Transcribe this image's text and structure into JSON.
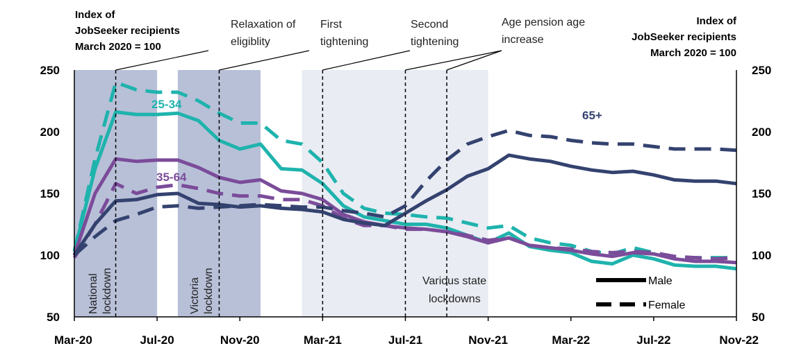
{
  "chart_data": {
    "type": "line",
    "ylabel_left": [
      "Index of",
      "JobSeeker recipients",
      "March 2020 = 100"
    ],
    "ylabel_right": [
      "Index of",
      "JobSeeker recipients",
      "March 2020 = 100"
    ],
    "ylim": [
      50,
      250
    ],
    "yticks": [
      50,
      100,
      150,
      200,
      250
    ],
    "x_start": "2020-03",
    "x_end": "2022-11",
    "x_tick_labels": [
      "Mar-20",
      "Jul-20",
      "Nov-20",
      "Mar-21",
      "Jul-21",
      "Nov-21",
      "Mar-22",
      "Jul-22",
      "Nov-22"
    ],
    "colors": {
      "25-34": "#1fb3ad",
      "35-64": "#7b4c9a",
      "65+": "#34426f",
      "shade_dark": "#b8c0d8",
      "shade_light": "#e9ecf3"
    },
    "shaded_periods": [
      {
        "start": "2020-03",
        "end": "2020-07",
        "shade": "dark",
        "label": [
          "National",
          "lockdown"
        ]
      },
      {
        "start": "2020-08",
        "end": "2020-12",
        "shade": "dark",
        "label": [
          "Victoria",
          "lockdown"
        ]
      },
      {
        "start": "2021-02",
        "end": "2021-11",
        "shade": "light",
        "label": [
          "Various state",
          "lockdowns"
        ]
      }
    ],
    "events": [
      {
        "date": "2020-05",
        "label": [
          "",
          ""
        ]
      },
      {
        "date": "2020-10",
        "label": [
          "Relaxation of",
          "eligiblity"
        ]
      },
      {
        "date": "2021-03",
        "label": [
          "First",
          "tightening"
        ]
      },
      {
        "date": "2021-07",
        "label": [
          "Second",
          "tightening"
        ]
      },
      {
        "date": "2021-09",
        "label": [
          "Age pension age",
          "increase"
        ]
      }
    ],
    "series_labels": [
      {
        "text": "25-34",
        "series": "25-34"
      },
      {
        "text": "35-64",
        "series": "35-64"
      },
      {
        "text": "65+",
        "series": "65+"
      }
    ],
    "legend": [
      {
        "label": "Male",
        "style": "solid"
      },
      {
        "label": "Female",
        "style": "dashed"
      }
    ],
    "series": [
      {
        "name": "25-34",
        "sex": "Male",
        "style": "solid",
        "values": [
          103,
          170,
          216,
          214,
          214,
          215,
          209,
          193,
          186,
          190,
          170,
          169,
          158,
          140,
          131,
          128,
          125,
          125,
          122,
          116,
          110,
          118,
          107,
          104,
          102,
          95,
          93,
          100,
          97,
          92,
          91,
          91,
          89
        ]
      },
      {
        "name": "25-34",
        "sex": "Female",
        "style": "dashed",
        "values": [
          103,
          178,
          240,
          234,
          232,
          232,
          225,
          215,
          207,
          207,
          193,
          190,
          175,
          150,
          138,
          134,
          133,
          131,
          130,
          126,
          122,
          124,
          114,
          110,
          108,
          103,
          101,
          106,
          102,
          98,
          98,
          98,
          98
        ]
      },
      {
        "name": "35-64",
        "sex": "Male",
        "style": "solid",
        "values": [
          100,
          150,
          178,
          176,
          177,
          177,
          171,
          163,
          159,
          161,
          152,
          150,
          145,
          133,
          127,
          124,
          122,
          121,
          119,
          115,
          110,
          114,
          108,
          106,
          104,
          101,
          99,
          102,
          101,
          97,
          95,
          95,
          94
        ]
      },
      {
        "name": "35-64",
        "sex": "Female",
        "style": "dashed",
        "values": [
          98,
          125,
          158,
          150,
          155,
          157,
          154,
          150,
          148,
          148,
          145,
          145,
          140,
          130,
          124,
          124,
          121,
          121,
          119,
          116,
          112,
          114,
          108,
          106,
          105,
          103,
          102,
          103,
          102,
          99,
          98,
          97,
          98
        ]
      },
      {
        "name": "65+",
        "sex": "Male",
        "style": "solid",
        "values": [
          100,
          125,
          144,
          145,
          149,
          150,
          142,
          141,
          139,
          140,
          138,
          137,
          135,
          129,
          126,
          124,
          134,
          144,
          153,
          164,
          170,
          181,
          178,
          176,
          172,
          169,
          167,
          168,
          165,
          161,
          160,
          160,
          158
        ]
      },
      {
        "name": "65+",
        "sex": "Female",
        "style": "dashed",
        "values": [
          100,
          115,
          128,
          133,
          139,
          140,
          138,
          139,
          140,
          141,
          140,
          139,
          139,
          136,
          134,
          131,
          140,
          160,
          177,
          190,
          196,
          201,
          197,
          196,
          193,
          191,
          190,
          190,
          188,
          186,
          186,
          186,
          185
        ]
      }
    ]
  }
}
